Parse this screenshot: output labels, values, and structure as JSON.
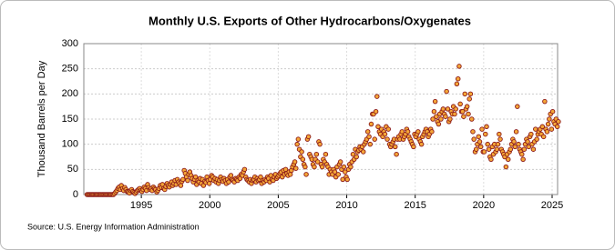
{
  "chart_data": {
    "type": "scatter",
    "title": "Monthly U.S. Exports of Other Hydrocarbons/Oxygenates",
    "y_label": "Thousand Barrels per Day",
    "source": "Source: U.S. Energy Information Administration",
    "color": "#f4a637",
    "edge_color": "#8b1a1a",
    "grid": true,
    "xlim": [
      1990.8,
      2025.4
    ],
    "xticks": [
      1995,
      2000,
      2005,
      2010,
      2015,
      2020,
      2025
    ],
    "ylim": [
      0,
      300
    ],
    "yticks": [
      0,
      50,
      100,
      150,
      200,
      250,
      300
    ],
    "x": [
      1991.04,
      1991.13,
      1991.21,
      1991.29,
      1991.38,
      1991.46,
      1991.54,
      1991.63,
      1991.71,
      1991.79,
      1991.88,
      1991.96,
      1992.04,
      1992.13,
      1992.21,
      1992.29,
      1992.38,
      1992.46,
      1992.54,
      1992.63,
      1992.71,
      1992.79,
      1992.88,
      1992.96,
      1993.04,
      1993.13,
      1993.21,
      1993.29,
      1993.38,
      1993.46,
      1993.54,
      1993.63,
      1993.71,
      1993.79,
      1993.88,
      1993.96,
      1994.04,
      1994.13,
      1994.21,
      1994.29,
      1994.38,
      1994.46,
      1994.54,
      1994.63,
      1994.71,
      1994.79,
      1994.88,
      1994.96,
      1995.04,
      1995.13,
      1995.21,
      1995.29,
      1995.38,
      1995.46,
      1995.54,
      1995.63,
      1995.71,
      1995.79,
      1995.88,
      1995.96,
      1996.04,
      1996.13,
      1996.21,
      1996.29,
      1996.38,
      1996.46,
      1996.54,
      1996.63,
      1996.71,
      1996.79,
      1996.88,
      1996.96,
      1997.04,
      1997.13,
      1997.21,
      1997.29,
      1997.38,
      1997.46,
      1997.54,
      1997.63,
      1997.71,
      1997.79,
      1997.88,
      1997.96,
      1998.04,
      1998.13,
      1998.21,
      1998.29,
      1998.38,
      1998.46,
      1998.54,
      1998.63,
      1998.71,
      1998.79,
      1998.88,
      1998.96,
      1999.04,
      1999.13,
      1999.21,
      1999.29,
      1999.38,
      1999.46,
      1999.54,
      1999.63,
      1999.71,
      1999.79,
      1999.88,
      1999.96,
      2000.04,
      2000.13,
      2000.21,
      2000.29,
      2000.38,
      2000.46,
      2000.54,
      2000.63,
      2000.71,
      2000.79,
      2000.88,
      2000.96,
      2001.04,
      2001.13,
      2001.21,
      2001.29,
      2001.38,
      2001.46,
      2001.54,
      2001.63,
      2001.71,
      2001.79,
      2001.88,
      2001.96,
      2002.04,
      2002.13,
      2002.21,
      2002.29,
      2002.38,
      2002.46,
      2002.54,
      2002.63,
      2002.71,
      2002.79,
      2002.88,
      2002.96,
      2003.04,
      2003.13,
      2003.21,
      2003.29,
      2003.38,
      2003.46,
      2003.54,
      2003.63,
      2003.71,
      2003.79,
      2003.88,
      2003.96,
      2004.04,
      2004.13,
      2004.21,
      2004.29,
      2004.38,
      2004.46,
      2004.54,
      2004.63,
      2004.71,
      2004.79,
      2004.88,
      2004.96,
      2005.04,
      2005.13,
      2005.21,
      2005.29,
      2005.38,
      2005.46,
      2005.54,
      2005.63,
      2005.71,
      2005.79,
      2005.88,
      2005.96,
      2006.04,
      2006.13,
      2006.21,
      2006.29,
      2006.38,
      2006.46,
      2006.54,
      2006.63,
      2006.71,
      2006.79,
      2006.88,
      2006.96,
      2007.04,
      2007.13,
      2007.21,
      2007.29,
      2007.38,
      2007.46,
      2007.54,
      2007.63,
      2007.71,
      2007.79,
      2007.88,
      2007.96,
      2008.04,
      2008.13,
      2008.21,
      2008.29,
      2008.38,
      2008.46,
      2008.54,
      2008.63,
      2008.71,
      2008.79,
      2008.88,
      2008.96,
      2009.04,
      2009.13,
      2009.21,
      2009.29,
      2009.38,
      2009.46,
      2009.54,
      2009.63,
      2009.71,
      2009.79,
      2009.88,
      2009.96,
      2010.04,
      2010.13,
      2010.21,
      2010.29,
      2010.38,
      2010.46,
      2010.54,
      2010.63,
      2010.71,
      2010.79,
      2010.88,
      2010.96,
      2011.04,
      2011.13,
      2011.21,
      2011.29,
      2011.38,
      2011.46,
      2011.54,
      2011.63,
      2011.71,
      2011.79,
      2011.88,
      2011.96,
      2012.04,
      2012.13,
      2012.21,
      2012.29,
      2012.38,
      2012.46,
      2012.54,
      2012.63,
      2012.71,
      2012.79,
      2012.88,
      2012.96,
      2013.04,
      2013.13,
      2013.21,
      2013.29,
      2013.38,
      2013.46,
      2013.54,
      2013.63,
      2013.71,
      2013.79,
      2013.88,
      2013.96,
      2014.04,
      2014.13,
      2014.21,
      2014.29,
      2014.38,
      2014.46,
      2014.54,
      2014.63,
      2014.71,
      2014.79,
      2014.88,
      2014.96,
      2015.04,
      2015.13,
      2015.21,
      2015.29,
      2015.38,
      2015.46,
      2015.54,
      2015.63,
      2015.71,
      2015.79,
      2015.88,
      2015.96,
      2016.04,
      2016.13,
      2016.21,
      2016.29,
      2016.38,
      2016.46,
      2016.54,
      2016.63,
      2016.71,
      2016.79,
      2016.88,
      2016.96,
      2017.04,
      2017.13,
      2017.21,
      2017.29,
      2017.38,
      2017.46,
      2017.54,
      2017.63,
      2017.71,
      2017.79,
      2017.88,
      2017.96,
      2018.04,
      2018.13,
      2018.21,
      2018.29,
      2018.38,
      2018.46,
      2018.54,
      2018.63,
      2018.71,
      2018.79,
      2018.88,
      2018.96,
      2019.04,
      2019.13,
      2019.21,
      2019.29,
      2019.38,
      2019.46,
      2019.54,
      2019.63,
      2019.71,
      2019.79,
      2019.88,
      2019.96,
      2020.04,
      2020.13,
      2020.21,
      2020.29,
      2020.38,
      2020.46,
      2020.54,
      2020.63,
      2020.71,
      2020.79,
      2020.88,
      2020.96,
      2021.04,
      2021.13,
      2021.21,
      2021.29,
      2021.38,
      2021.46,
      2021.54,
      2021.63,
      2021.71,
      2021.79,
      2021.88,
      2021.96,
      2022.04,
      2022.13,
      2022.21,
      2022.29,
      2022.38,
      2022.46,
      2022.54,
      2022.63,
      2022.71,
      2022.79,
      2022.88,
      2022.96,
      2023.04,
      2023.13,
      2023.21,
      2023.29,
      2023.38,
      2023.46,
      2023.54,
      2023.63,
      2023.71,
      2023.79,
      2023.88,
      2023.96,
      2024.04,
      2024.13,
      2024.21,
      2024.29,
      2024.38,
      2024.46,
      2024.54,
      2024.63,
      2024.71,
      2024.79,
      2024.88,
      2024.96,
      2025.04,
      2025.13,
      2025.21,
      2025.29,
      2025.38,
      2025.46
    ],
    "values": [
      0,
      0,
      0,
      0,
      0,
      0,
      0,
      0,
      0,
      0,
      0,
      0,
      0,
      0,
      0,
      0,
      0,
      0,
      0,
      0,
      0,
      0,
      0,
      0,
      2,
      5,
      8,
      12,
      15,
      10,
      18,
      12,
      8,
      14,
      10,
      6,
      5,
      3,
      8,
      10,
      6,
      4,
      2,
      5,
      8,
      10,
      12,
      8,
      6,
      10,
      15,
      12,
      8,
      20,
      14,
      10,
      12,
      8,
      15,
      12,
      10,
      5,
      8,
      12,
      18,
      14,
      20,
      12,
      10,
      16,
      22,
      18,
      15,
      20,
      25,
      18,
      22,
      28,
      20,
      30,
      25,
      22,
      18,
      26,
      30,
      48,
      42,
      35,
      28,
      40,
      45,
      38,
      32,
      25,
      30,
      35,
      20,
      28,
      25,
      32,
      22,
      30,
      18,
      26,
      24,
      35,
      28,
      22,
      30,
      38,
      35,
      28,
      32,
      25,
      30,
      22,
      28,
      35,
      30,
      26,
      32,
      28,
      22,
      30,
      25,
      35,
      38,
      30,
      28,
      25,
      32,
      30,
      28,
      35,
      32,
      40,
      38,
      45,
      50,
      35,
      30,
      28,
      25,
      30,
      22,
      28,
      30,
      35,
      25,
      32,
      28,
      30,
      35,
      22,
      28,
      25,
      30,
      28,
      35,
      32,
      25,
      38,
      30,
      28,
      35,
      40,
      32,
      35,
      38,
      42,
      45,
      35,
      48,
      40,
      50,
      42,
      38,
      45,
      40,
      48,
      55,
      60,
      65,
      52,
      100,
      110,
      90,
      75,
      85,
      70,
      60,
      55,
      40,
      110,
      115,
      80,
      75,
      70,
      60,
      55,
      70,
      80,
      65,
      105,
      100,
      60,
      55,
      70,
      65,
      80,
      60,
      55,
      40,
      50,
      45,
      40,
      50,
      45,
      35,
      55,
      40,
      60,
      65,
      50,
      30,
      55,
      45,
      35,
      30,
      50,
      60,
      55,
      65,
      80,
      70,
      90,
      75,
      85,
      88,
      95,
      90,
      95,
      85,
      100,
      105,
      110,
      125,
      115,
      100,
      140,
      160,
      160,
      110,
      165,
      195,
      135,
      125,
      120,
      130,
      115,
      125,
      120,
      135,
      110,
      130,
      100,
      95,
      100,
      105,
      110,
      95,
      80,
      110,
      115,
      110,
      120,
      125,
      110,
      115,
      120,
      130,
      125,
      115,
      110,
      105,
      100,
      95,
      120,
      115,
      120,
      125,
      110,
      105,
      100,
      115,
      120,
      125,
      130,
      125,
      115,
      120,
      130,
      125,
      150,
      165,
      185,
      155,
      145,
      140,
      160,
      150,
      165,
      170,
      160,
      155,
      205,
      170,
      145,
      150,
      165,
      160,
      175,
      160,
      170,
      220,
      230,
      255,
      180,
      165,
      165,
      155,
      200,
      170,
      175,
      160,
      190,
      200,
      150,
      125,
      110,
      85,
      90,
      100,
      115,
      105,
      95,
      130,
      85,
      85,
      120,
      135,
      100,
      90,
      75,
      70,
      95,
      80,
      100,
      85,
      90,
      100,
      120,
      110,
      90,
      85,
      80,
      75,
      55,
      80,
      70,
      85,
      90,
      100,
      110,
      105,
      95,
      125,
      175,
      100,
      90,
      85,
      80,
      70,
      90,
      100,
      110,
      105,
      95,
      115,
      120,
      100,
      90,
      105,
      130,
      110,
      120,
      125,
      130,
      120,
      135,
      115,
      185,
      130,
      125,
      140,
      150,
      160,
      130,
      165,
      145,
      140,
      150,
      135,
      145
    ]
  }
}
